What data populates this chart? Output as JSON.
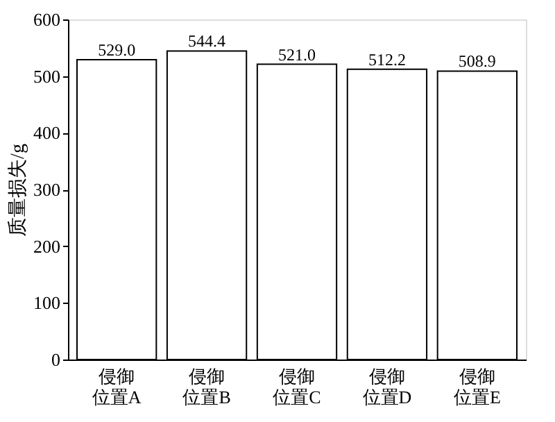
{
  "chart_data": {
    "type": "bar",
    "ylabel": "质量损失/g",
    "categories": [
      "侵御位置A",
      "侵御位置B",
      "侵御位置C",
      "侵御位置D",
      "侵御位置E"
    ],
    "values": [
      529.0,
      544.4,
      521.0,
      512.2,
      508.9
    ],
    "value_labels": [
      "529.0",
      "544.4",
      "521.0",
      "512.2",
      "508.9"
    ],
    "color": "#ffffff",
    "ylim": [
      0,
      600
    ],
    "yticks": [
      0,
      100,
      200,
      300,
      400,
      500,
      600
    ],
    "grid": false
  }
}
